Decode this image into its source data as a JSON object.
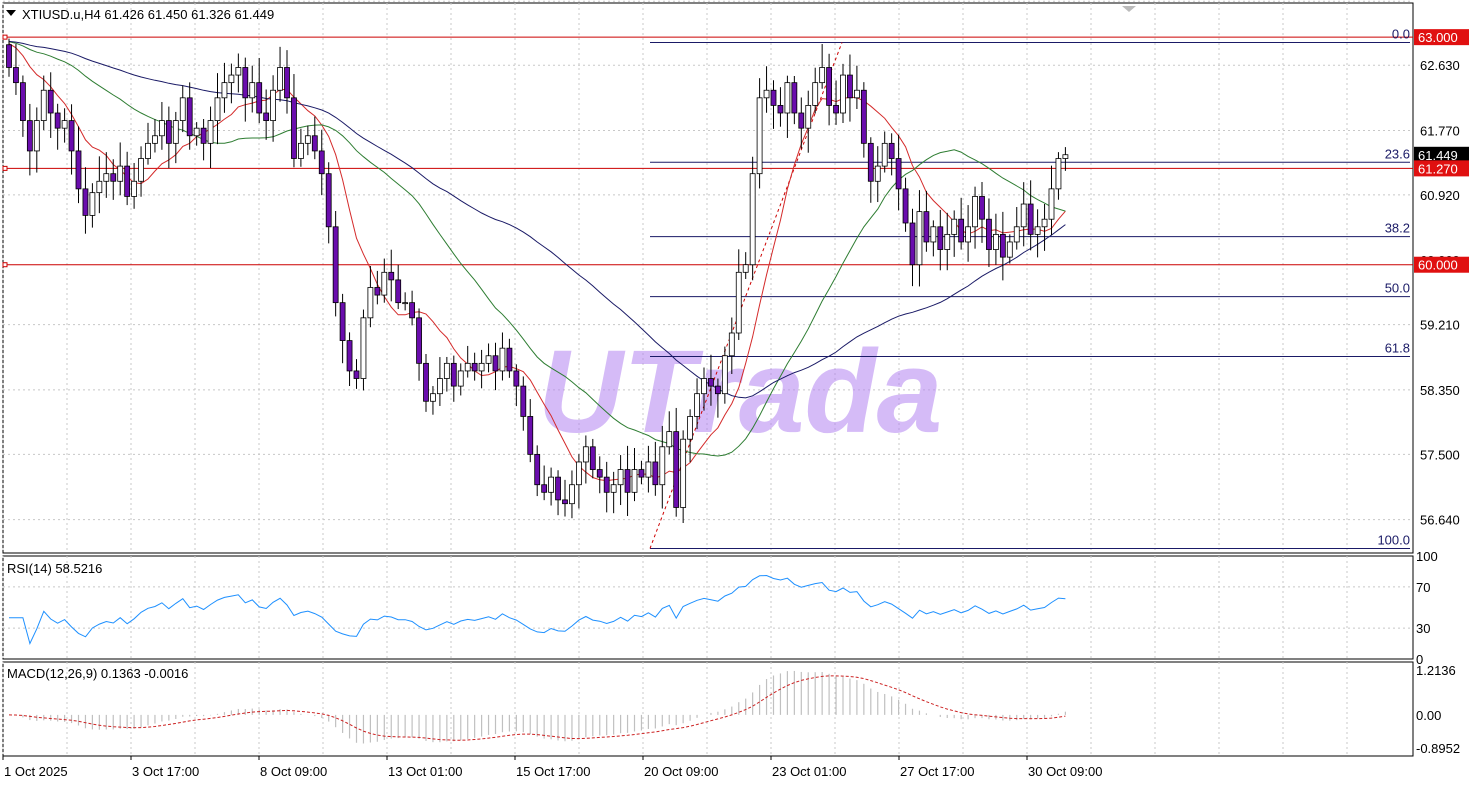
{
  "chart_data": [
    {
      "type": "candlestick",
      "symbol_header": "XTIUSD.u,H4  61.426 61.450 61.326 61.449",
      "ylim": [
        56.2,
        63.45
      ],
      "y_ticks": [
        "62.630",
        "61.770",
        "60.920",
        "59.210",
        "58.350",
        "57.500",
        "56.640"
      ],
      "price_tags": [
        {
          "label": "63.000",
          "value": 63.0,
          "style": "red"
        },
        {
          "label": "61.449",
          "value": 61.449,
          "style": "black"
        },
        {
          "label": "61.270",
          "value": 61.27,
          "style": "red"
        },
        {
          "label": "60.000",
          "value": 60.0,
          "style": "red"
        }
      ],
      "hidden_tick_fragment": "60.060",
      "horizontal_levels": [
        63.0,
        61.27,
        60.0
      ],
      "fibonacci": {
        "levels": [
          {
            "label": "0.0",
            "value": 62.93
          },
          {
            "label": "23.6",
            "value": 61.35
          },
          {
            "label": "38.2",
            "value": 60.37
          },
          {
            "label": "50.0",
            "value": 59.58
          },
          {
            "label": "61.8",
            "value": 58.79
          },
          {
            "label": "100.0",
            "value": 56.26
          }
        ]
      },
      "x_labels": [
        "1 Oct 2025",
        "3 Oct 17:00",
        "8 Oct 09:00",
        "13 Oct 01:00",
        "15 Oct 17:00",
        "20 Oct 09:00",
        "23 Oct 01:00",
        "27 Oct 17:00",
        "30 Oct 09:00"
      ],
      "closes": [
        62.6,
        62.4,
        61.9,
        61.5,
        61.9,
        62.3,
        62.0,
        61.8,
        61.9,
        61.5,
        61.0,
        60.65,
        60.95,
        61.1,
        61.2,
        61.1,
        61.3,
        60.9,
        61.1,
        61.4,
        61.6,
        61.7,
        61.9,
        61.6,
        61.9,
        62.2,
        61.7,
        61.8,
        61.6,
        61.9,
        62.2,
        62.4,
        62.5,
        62.6,
        62.2,
        62.4,
        62.0,
        61.9,
        62.3,
        62.6,
        62.2,
        61.4,
        61.6,
        61.7,
        61.5,
        61.2,
        60.5,
        59.5,
        59.0,
        58.6,
        58.5,
        59.3,
        59.7,
        59.6,
        59.9,
        59.8,
        59.5,
        59.5,
        59.3,
        58.7,
        58.2,
        58.3,
        58.5,
        58.7,
        58.4,
        58.6,
        58.7,
        58.6,
        58.7,
        58.8,
        58.6,
        58.9,
        58.6,
        58.4,
        58.0,
        57.5,
        57.1,
        57.0,
        57.2,
        56.9,
        56.85,
        57.1,
        57.4,
        57.6,
        57.3,
        57.2,
        57.0,
        57.1,
        57.3,
        57.0,
        57.3,
        57.2,
        57.4,
        57.1,
        57.6,
        57.8,
        56.8,
        57.7,
        58.0,
        58.3,
        58.5,
        58.4,
        58.3,
        58.8,
        59.1,
        59.9,
        60.0,
        61.2,
        62.2,
        62.3,
        62.1,
        62.0,
        62.4,
        62.0,
        61.8,
        62.1,
        62.4,
        62.6,
        62.1,
        62.0,
        62.5,
        62.2,
        62.3,
        61.6,
        61.1,
        61.3,
        61.6,
        61.4,
        61.0,
        60.55,
        60.0,
        60.7,
        60.3,
        60.5,
        60.2,
        60.4,
        60.6,
        60.3,
        60.5,
        60.9,
        60.6,
        60.2,
        60.4,
        60.1,
        60.3,
        60.5,
        60.8,
        60.4,
        60.5,
        60.6,
        61.0,
        61.4,
        61.45
      ],
      "sma_fast_note": "red moving average",
      "sma_mid_note": "green moving average",
      "sma_slow_note": "navy moving average"
    },
    {
      "type": "line",
      "title": "RSI(14) 58.5216",
      "ylim": [
        0,
        100
      ],
      "y_ticks": [
        "100",
        "70",
        "30",
        "0"
      ],
      "color": "#1e90ff"
    },
    {
      "type": "bar",
      "title": "MACD(12,26,9) 0.1363 -0.0016",
      "ylim": [
        -0.8952,
        1.2136
      ],
      "y_ticks": [
        "1.2136",
        "0.00",
        "-0.8952"
      ],
      "histogram_color": "#c0c0c0",
      "signal_color": "#cc2222"
    }
  ],
  "watermark": "UTrada",
  "colors": {
    "bull_body": "#ffffff",
    "bear_body": "#6a0dad",
    "wick": "#000000",
    "grid": "#c8c8c8",
    "red_line": "#cc0000",
    "fib_line": "#1a1a66",
    "tag_red": "#e01010"
  }
}
